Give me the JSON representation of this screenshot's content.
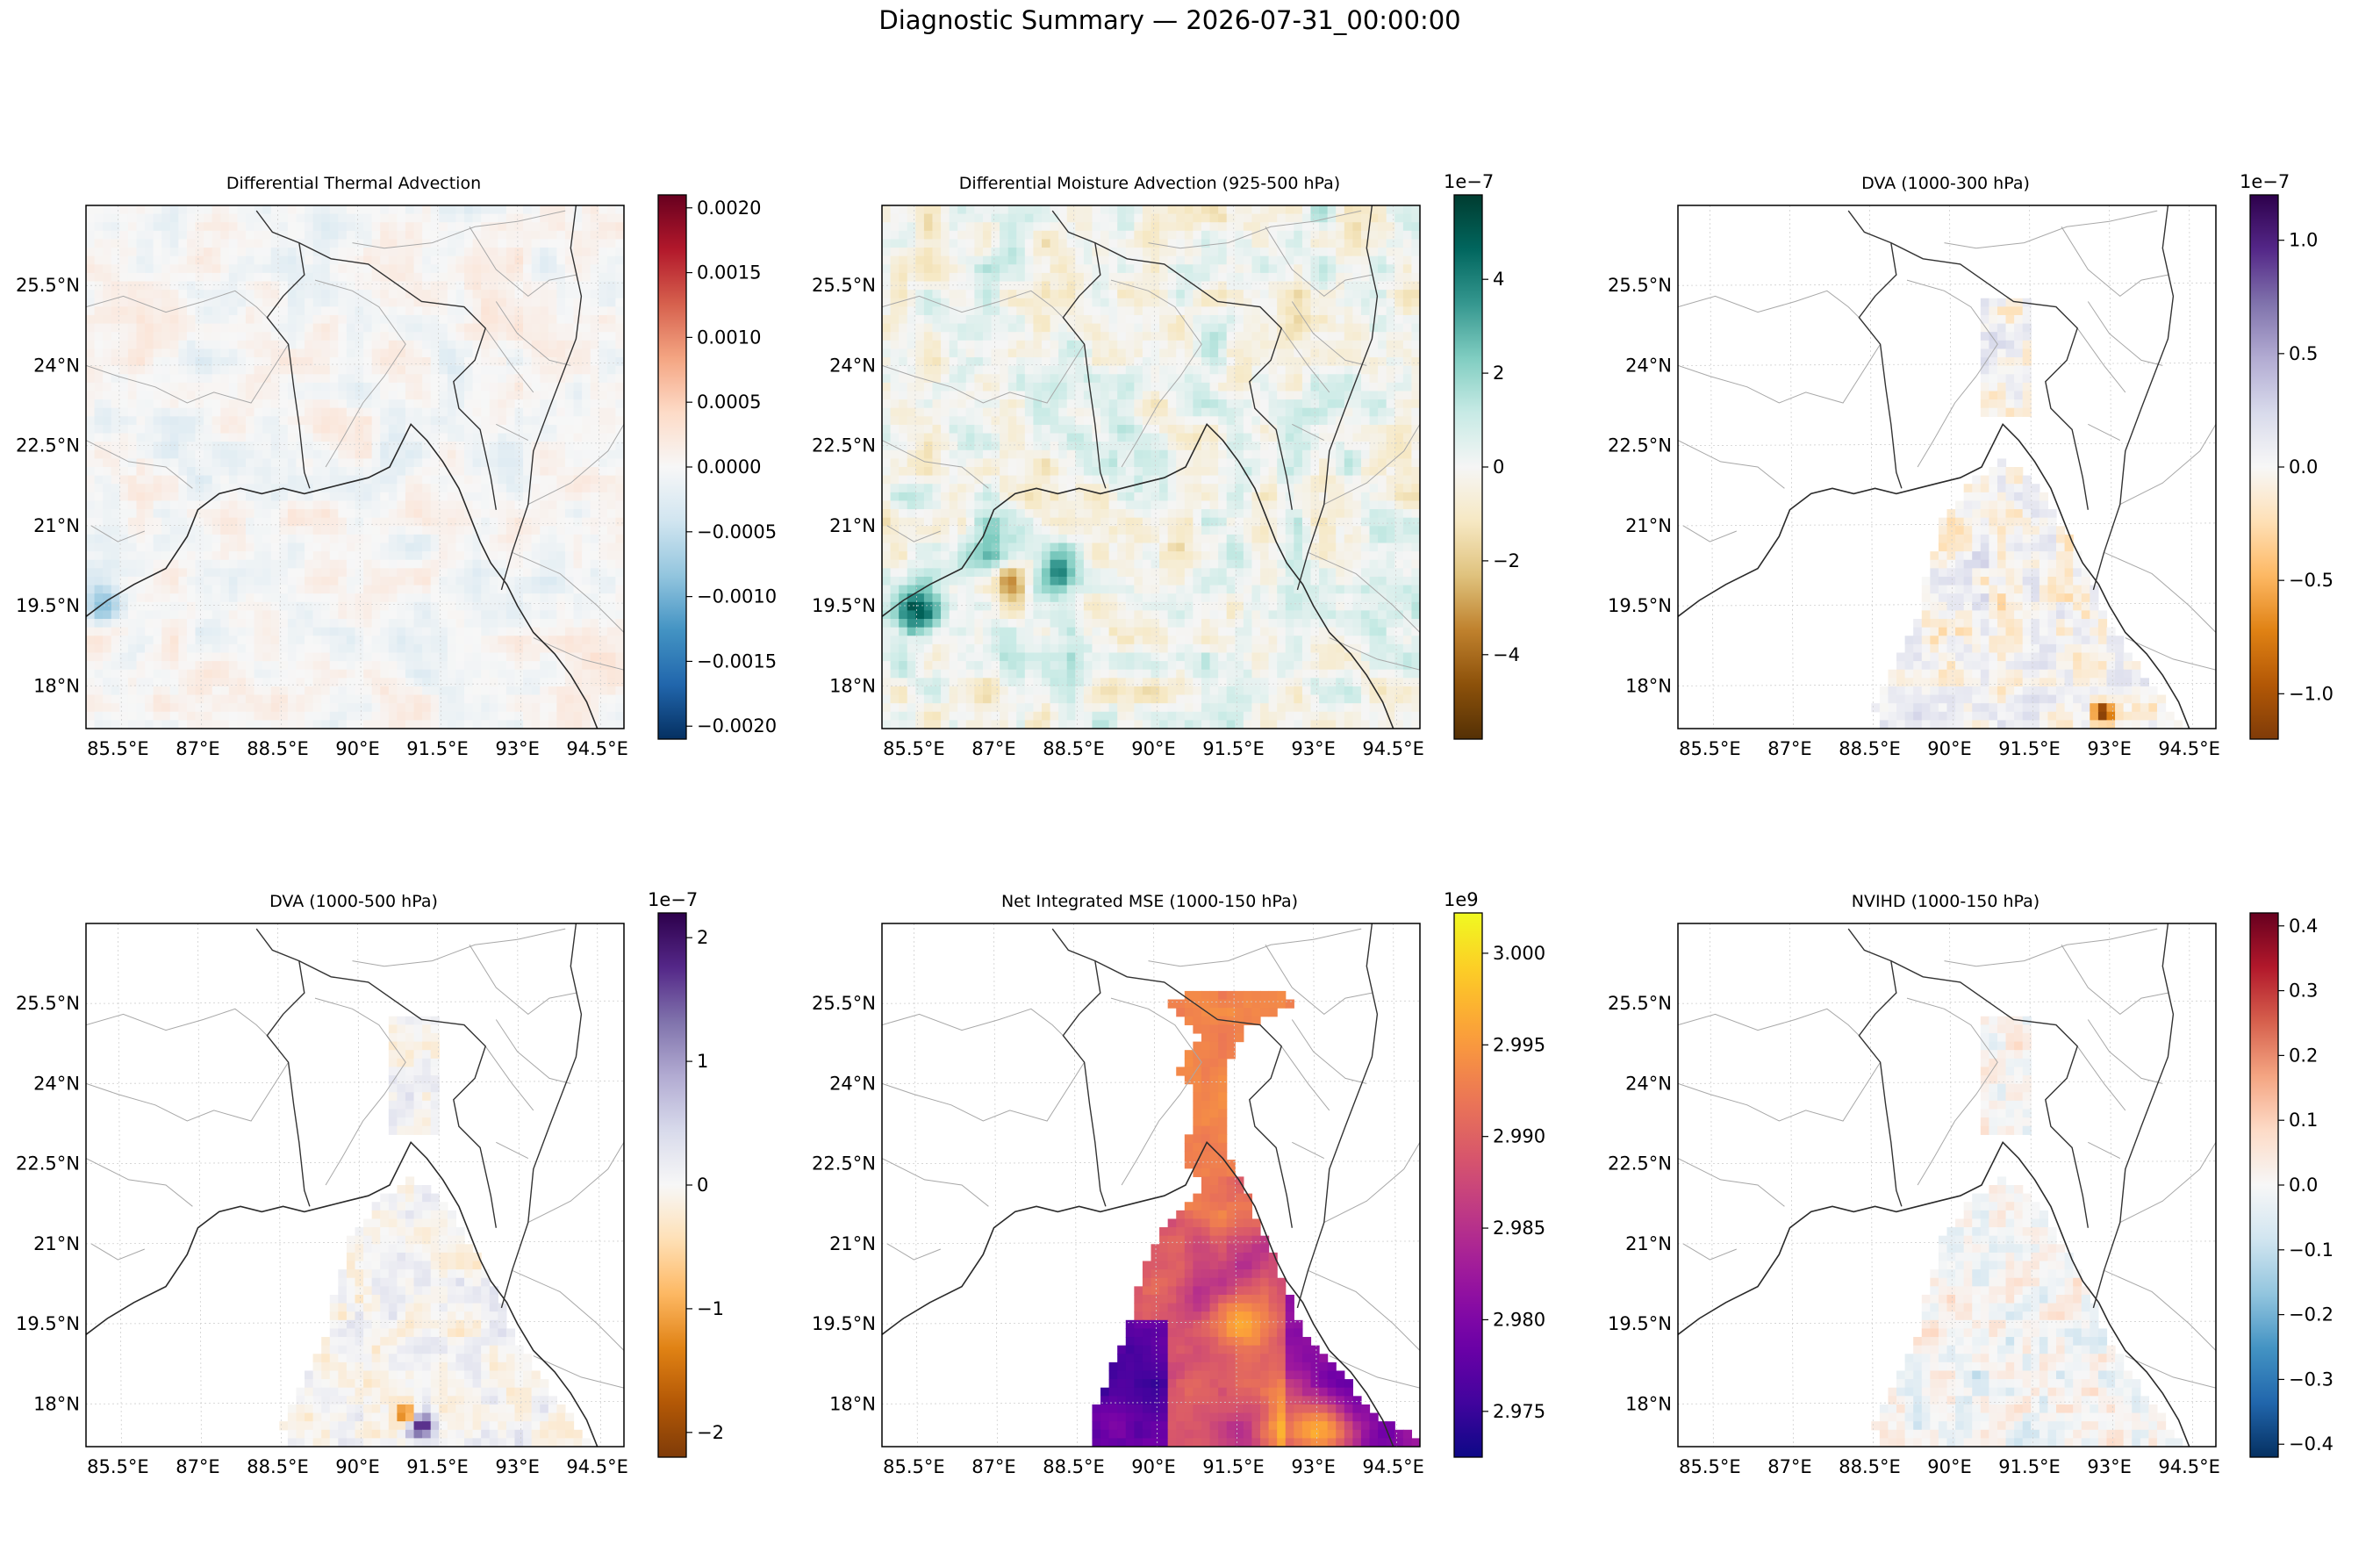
{
  "page": {
    "title": "Diagnostic Summary — 2026-07-31_00:00:00"
  },
  "chart_data": [
    {
      "type": "heatmap",
      "title": "Differential Thermal Advection",
      "x_ticks": [
        "85.5°E",
        "87°E",
        "88.5°E",
        "90°E",
        "91.5°E",
        "93°E",
        "94.5°E"
      ],
      "y_ticks": [
        "25.5°N",
        "24°N",
        "22.5°N",
        "21°N",
        "19.5°N",
        "18°N"
      ],
      "colormap": "RdBu_r",
      "colorbar": {
        "min": -0.0021,
        "max": 0.0021,
        "exponent": "",
        "ticks": [
          -0.002,
          -0.0015,
          -0.001,
          -0.0005,
          0.0,
          0.0005,
          0.001,
          0.0015,
          0.002
        ],
        "tick_labels": [
          "−0.0020",
          "−0.0015",
          "−0.0010",
          "−0.0005",
          "0.0000",
          "0.0005",
          "0.0010",
          "0.0015",
          "0.0020"
        ]
      },
      "field_extent": "full domain",
      "grid": true
    },
    {
      "type": "heatmap",
      "title": "Differential Moisture Advection (925-500 hPa)",
      "x_ticks": [
        "85.5°E",
        "87°E",
        "88.5°E",
        "90°E",
        "91.5°E",
        "93°E",
        "94.5°E"
      ],
      "y_ticks": [
        "25.5°N",
        "24°N",
        "22.5°N",
        "21°N",
        "19.5°N",
        "18°N"
      ],
      "colormap": "BrBG",
      "colorbar": {
        "min": -5.8,
        "max": 5.8,
        "exponent": "1e−7",
        "ticks": [
          -4,
          -2,
          0,
          2,
          4
        ],
        "tick_labels": [
          "−4",
          "−2",
          "0",
          "2",
          "4"
        ]
      },
      "field_extent": "full domain",
      "grid": true
    },
    {
      "type": "heatmap",
      "title": "DVA (1000-300 hPa)",
      "x_ticks": [
        "85.5°E",
        "87°E",
        "88.5°E",
        "90°E",
        "91.5°E",
        "93°E",
        "94.5°E"
      ],
      "y_ticks": [
        "25.5°N",
        "24°N",
        "22.5°N",
        "21°N",
        "19.5°N",
        "18°N"
      ],
      "colormap": "PuOr",
      "colorbar": {
        "min": -1.2,
        "max": 1.2,
        "exponent": "1e−7",
        "ticks": [
          -1.0,
          -0.5,
          0.0,
          0.5,
          1.0
        ],
        "tick_labels": [
          "−1.0",
          "−0.5",
          "0.0",
          "0.5",
          "1.0"
        ]
      },
      "field_extent": "eastern Bay of Bengal",
      "grid": true
    },
    {
      "type": "heatmap",
      "title": "DVA (1000-500 hPa)",
      "x_ticks": [
        "85.5°E",
        "87°E",
        "88.5°E",
        "90°E",
        "91.5°E",
        "93°E",
        "94.5°E"
      ],
      "y_ticks": [
        "25.5°N",
        "24°N",
        "22.5°N",
        "21°N",
        "19.5°N",
        "18°N"
      ],
      "colormap": "PuOr",
      "colorbar": {
        "min": -2.2,
        "max": 2.2,
        "exponent": "1e−7",
        "ticks": [
          -2,
          -1,
          0,
          1,
          2
        ],
        "tick_labels": [
          "−2",
          "−1",
          "0",
          "1",
          "2"
        ]
      },
      "field_extent": "eastern Bay of Bengal",
      "grid": true
    },
    {
      "type": "heatmap",
      "title": "Net Integrated MSE (1000-150 hPa)",
      "x_ticks": [
        "85.5°E",
        "87°E",
        "88.5°E",
        "90°E",
        "91.5°E",
        "93°E",
        "94.5°E"
      ],
      "y_ticks": [
        "25.5°N",
        "24°N",
        "22.5°N",
        "21°N",
        "19.5°N",
        "18°N"
      ],
      "colormap": "plasma",
      "colorbar": {
        "min": 2.9725,
        "max": 3.0022,
        "exponent": "1e9",
        "ticks": [
          2.975,
          2.98,
          2.985,
          2.99,
          2.995,
          3.0
        ],
        "tick_labels": [
          "2.975",
          "2.980",
          "2.985",
          "2.990",
          "2.995",
          "3.000"
        ]
      },
      "field_extent": "eastern Bay of Bengal",
      "grid": true
    },
    {
      "type": "heatmap",
      "title": "NVIHD (1000-150 hPa)",
      "x_ticks": [
        "85.5°E",
        "87°E",
        "88.5°E",
        "90°E",
        "91.5°E",
        "93°E",
        "94.5°E"
      ],
      "y_ticks": [
        "25.5°N",
        "24°N",
        "22.5°N",
        "21°N",
        "19.5°N",
        "18°N"
      ],
      "colormap": "RdBu_r",
      "colorbar": {
        "min": -0.42,
        "max": 0.42,
        "exponent": "",
        "ticks": [
          -0.4,
          -0.3,
          -0.2,
          -0.1,
          0.0,
          0.1,
          0.2,
          0.3,
          0.4
        ],
        "tick_labels": [
          "−0.4",
          "−0.3",
          "−0.2",
          "−0.1",
          "0.0",
          "0.1",
          "0.2",
          "0.3",
          "0.4"
        ]
      },
      "field_extent": "eastern Bay of Bengal",
      "grid": true
    }
  ]
}
